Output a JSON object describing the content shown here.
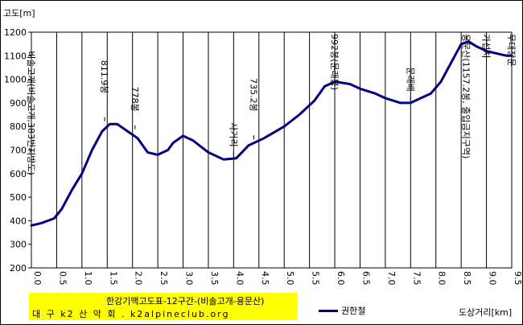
{
  "chart_data": {
    "type": "line",
    "ylabel": "고도[m]",
    "xlabel": "도상거리[km]",
    "ylim": [
      200,
      1200
    ],
    "xlim": [
      0.0,
      9.5
    ],
    "y_ticks": [
      "200",
      "300",
      "400",
      "500",
      "600",
      "700",
      "800",
      "900",
      "1000",
      "1100",
      "1200"
    ],
    "x_ticks": [
      "0.0",
      "0.5",
      "1.0",
      "1.5",
      "2.0",
      "2.5",
      "3.0",
      "3.5",
      "4.0",
      "4.5",
      "5.0",
      "5.5",
      "6.0",
      "6.5",
      "7.0",
      "7.5",
      "8.0",
      "8.5",
      "9.0",
      "9.5"
    ],
    "grid": "vertical",
    "legend": "bottom-center",
    "series": [
      {
        "name": "권한철",
        "color": "#000080",
        "x": [
          0.0,
          0.2,
          0.45,
          0.6,
          0.8,
          1.0,
          1.2,
          1.4,
          1.55,
          1.7,
          1.9,
          2.1,
          2.3,
          2.5,
          2.7,
          2.8,
          3.0,
          3.2,
          3.5,
          3.8,
          4.05,
          4.3,
          4.6,
          5.0,
          5.3,
          5.6,
          5.8,
          6.0,
          6.3,
          6.5,
          6.8,
          7.0,
          7.3,
          7.5,
          7.7,
          7.9,
          8.1,
          8.3,
          8.5,
          8.65,
          8.8,
          9.0,
          9.2,
          9.4,
          9.5
        ],
        "y": [
          380,
          390,
          410,
          450,
          530,
          600,
          700,
          780,
          810,
          810,
          780,
          750,
          690,
          680,
          700,
          730,
          760,
          740,
          690,
          660,
          665,
          720,
          750,
          800,
          850,
          910,
          970,
          990,
          980,
          960,
          940,
          920,
          900,
          900,
          920,
          940,
          990,
          1070,
          1150,
          1160,
          1140,
          1120,
          1110,
          1100,
          1100
        ]
      }
    ],
    "annotations": [
      {
        "text": "비솔고개(비솔고개,383번지방도)",
        "x": 0.0,
        "y": 380
      },
      {
        "text": "811.9봉",
        "x": 1.45,
        "y": 811.9
      },
      {
        "text": "778봉",
        "x": 2.05,
        "y": 778
      },
      {
        "text": "사거리",
        "x": 4.0,
        "y": 665
      },
      {
        "text": "735.2봉",
        "x": 4.4,
        "y": 735.2
      },
      {
        "text": "992봉(문래봉)",
        "x": 6.0,
        "y": 992
      },
      {
        "text": "문래배",
        "x": 7.5,
        "y": 900
      },
      {
        "text": "용문산(1157.2봉, 출입금지구역)",
        "x": 8.6,
        "y": 1157.2
      },
      {
        "text": "가섭치",
        "x": 9.0,
        "y": 1120
      },
      {
        "text": "무대장문",
        "x": 9.5,
        "y": 1100
      }
    ]
  },
  "caption": {
    "title": "한강기맥고도표-12구간-(비솔고개-용문산)",
    "org": "대 구 k2 산 악 회 . k2alpineclub.org"
  }
}
